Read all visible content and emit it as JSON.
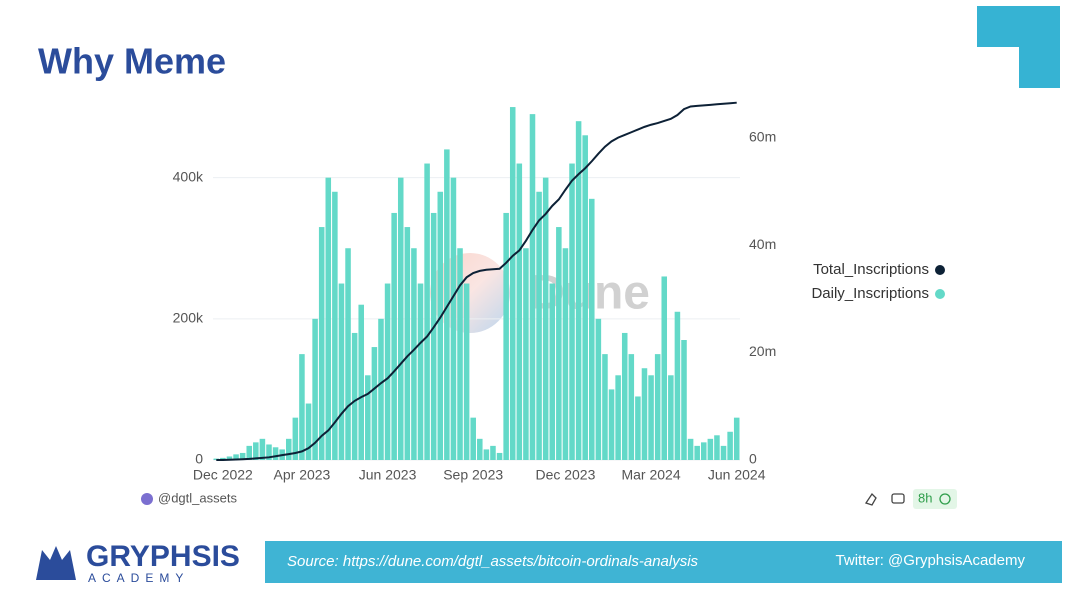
{
  "header": {
    "title": "Why Meme"
  },
  "chart_data": {
    "type": "bar",
    "watermark": "Dune",
    "categories": [
      null,
      "Dec 2022",
      null,
      null,
      null,
      null,
      null,
      null,
      null,
      null,
      null,
      null,
      null,
      "Apr 2023",
      null,
      null,
      null,
      null,
      null,
      null,
      null,
      null,
      null,
      null,
      null,
      null,
      "Jun 2023",
      null,
      null,
      null,
      null,
      null,
      null,
      null,
      null,
      null,
      null,
      null,
      null,
      "Sep 2023",
      null,
      null,
      null,
      null,
      null,
      null,
      null,
      null,
      null,
      null,
      null,
      null,
      null,
      "Dec 2023",
      null,
      null,
      null,
      null,
      null,
      null,
      null,
      null,
      null,
      null,
      null,
      null,
      "Mar 2024",
      null,
      null,
      null,
      null,
      null,
      null,
      null,
      null,
      null,
      null,
      null,
      null,
      "Jun 2024"
    ],
    "series": [
      {
        "name": "Total_Inscriptions",
        "type": "line",
        "axis": "y2",
        "color": "#0d2136",
        "values": [
          0,
          0,
          50000,
          100000,
          150000,
          200000,
          300000,
          400000,
          500000,
          700000,
          900000,
          1100000,
          1300000,
          1600000,
          2200000,
          3200000,
          4500000,
          5500000,
          7000000,
          8600000,
          10000000,
          11000000,
          11700000,
          12300000,
          13300000,
          14300000,
          15200000,
          16500000,
          17900000,
          19300000,
          20500000,
          21800000,
          23000000,
          24700000,
          26500000,
          28500000,
          30500000,
          32500000,
          34000000,
          34800000,
          35200000,
          35400000,
          35500000,
          35600000,
          36700000,
          38000000,
          39000000,
          40800000,
          42800000,
          44600000,
          45800000,
          47300000,
          48500000,
          50300000,
          52000000,
          53200000,
          54300000,
          55600000,
          57000000,
          58300000,
          59300000,
          60000000,
          60500000,
          61000000,
          61500000,
          62000000,
          62400000,
          62700000,
          63100000,
          63500000,
          64200000,
          65300000,
          65800000,
          65900000,
          66000000,
          66100000,
          66200000,
          66300000,
          66400000,
          66500000
        ]
      },
      {
        "name": "Daily_Inscriptions",
        "type": "bar",
        "axis": "y",
        "color": "#63d9c8",
        "values": [
          2000,
          3000,
          5000,
          8000,
          10000,
          20000,
          25000,
          30000,
          22000,
          18000,
          15000,
          30000,
          60000,
          150000,
          80000,
          200000,
          330000,
          400000,
          380000,
          250000,
          300000,
          180000,
          220000,
          120000,
          160000,
          200000,
          250000,
          350000,
          400000,
          330000,
          300000,
          250000,
          420000,
          350000,
          380000,
          440000,
          400000,
          300000,
          250000,
          60000,
          30000,
          15000,
          20000,
          10000,
          350000,
          500000,
          420000,
          300000,
          490000,
          380000,
          400000,
          250000,
          330000,
          300000,
          420000,
          480000,
          460000,
          370000,
          200000,
          150000,
          100000,
          120000,
          180000,
          150000,
          90000,
          130000,
          120000,
          150000,
          260000,
          120000,
          210000,
          170000,
          30000,
          20000,
          25000,
          30000,
          35000,
          20000,
          40000,
          60000
        ]
      }
    ],
    "ylim": [
      0,
      510000
    ],
    "yticks": [
      0,
      {
        "value": 200000,
        "label": "200k"
      },
      {
        "value": 400000,
        "label": "400k"
      }
    ],
    "y2lim": [
      0,
      67000000
    ],
    "y2ticks": [
      0,
      {
        "value": 20000000,
        "label": "20m"
      },
      {
        "value": 40000000,
        "label": "40m"
      },
      {
        "value": 60000000,
        "label": "60m"
      }
    ],
    "grid": true,
    "legend": "right"
  },
  "chart_footer": {
    "author": "@dgtl_assets",
    "refresh": "8h"
  },
  "footer": {
    "logo": "GRYPHSIS",
    "logo_sub": "ACADEMY",
    "source": "Source: https://dune.com/dgtl_assets/bitcoin-ordinals-analysis",
    "twitter": "Twitter: @GryphsisAcademy"
  }
}
